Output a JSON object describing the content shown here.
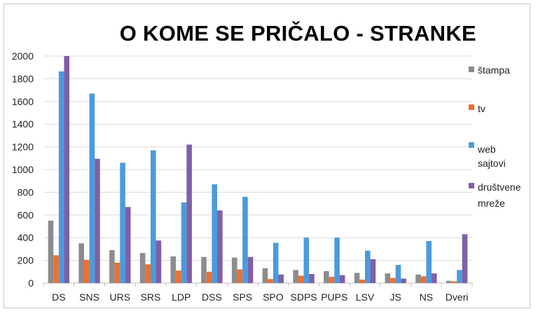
{
  "chart_data": {
    "type": "bar",
    "title": "O KOME SE PRIČALO - STRANKE",
    "xlabel": "",
    "ylabel": "",
    "ylim": [
      0,
      2000
    ],
    "yticks": [
      0,
      200,
      400,
      600,
      800,
      1000,
      1200,
      1400,
      1600,
      1800,
      2000
    ],
    "categories": [
      "DS",
      "SNS",
      "URS",
      "SRS",
      "LDP",
      "DSS",
      "SPS",
      "SPO",
      "SDPS",
      "PUPS",
      "LSV",
      "JS",
      "NS",
      "Dveri"
    ],
    "legend_position": "right",
    "series": [
      {
        "name": "štampa",
        "color": "#8c8c8c",
        "values": [
          550,
          350,
          290,
          265,
          235,
          230,
          225,
          130,
          115,
          105,
          90,
          85,
          75,
          20
        ]
      },
      {
        "name": "tv",
        "color": "#ed7031",
        "values": [
          245,
          205,
          180,
          165,
          110,
          100,
          120,
          35,
          65,
          55,
          30,
          45,
          60,
          15
        ]
      },
      {
        "name": "web sajtovi",
        "legend_lines": [
          "web",
          "sajtovi"
        ],
        "color": "#4a9bdd",
        "values": [
          1865,
          1670,
          1060,
          1170,
          710,
          870,
          760,
          355,
          400,
          400,
          285,
          160,
          370,
          115
        ]
      },
      {
        "name": "društvene mreže",
        "legend_lines": [
          "društvene",
          "mreže"
        ],
        "color": "#7f5fa8",
        "values": [
          2000,
          1095,
          670,
          375,
          1220,
          640,
          230,
          75,
          80,
          70,
          210,
          40,
          85,
          430
        ]
      }
    ]
  }
}
